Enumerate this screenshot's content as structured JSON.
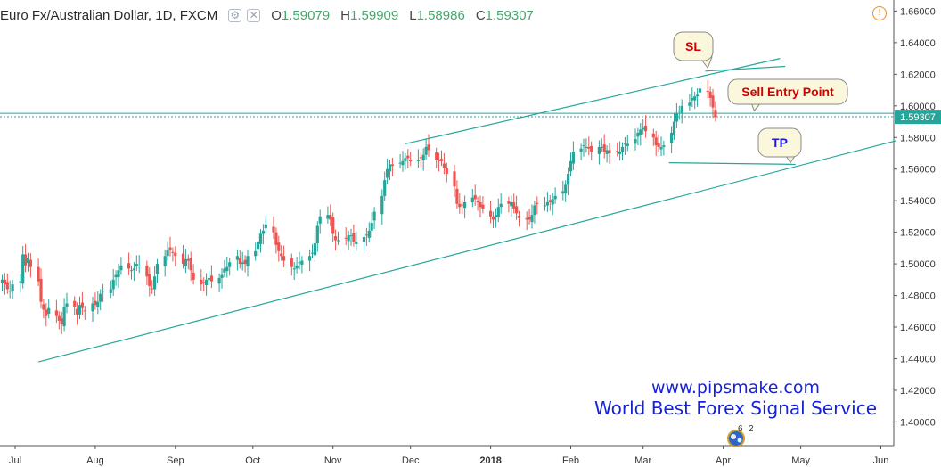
{
  "header": {
    "title": "Euro Fx/Australian Dollar, 1D, FXCM",
    "open_label": "O",
    "open": "1.59079",
    "high_label": "H",
    "high": "1.59909",
    "low_label": "L",
    "low": "1.58986",
    "close_label": "C",
    "close": "1.59307"
  },
  "info_icon": "!",
  "watermark": {
    "url": "www.pipsmake.com",
    "tagline": "World Best Forex Signal Service"
  },
  "badge": {
    "count_left": "6",
    "count_right": "2"
  },
  "colors": {
    "up": "#26a69a",
    "down": "#ef5350",
    "line": "#26a69a",
    "price_label_bg": "#26a69a",
    "callout_bg": "#fbf7dc",
    "sl_text": "#d40000",
    "sell_text": "#d40000",
    "tp_text": "#1a1ad8"
  },
  "chart_data": {
    "type": "candlestick",
    "title": "Euro Fx/Australian Dollar, 1D, FXCM",
    "y_ticks": [
      "1.40000",
      "1.42000",
      "1.44000",
      "1.46000",
      "1.48000",
      "1.50000",
      "1.52000",
      "1.54000",
      "1.56000",
      "1.58000",
      "1.60000",
      "1.62000",
      "1.64000",
      "1.66000"
    ],
    "ylim": [
      1.385,
      1.667
    ],
    "x_ticks": [
      "Jul",
      "Aug",
      "Sep",
      "Oct",
      "Nov",
      "Dec",
      "2018",
      "Feb",
      "Mar",
      "Apr",
      "May",
      "Jun"
    ],
    "x_ticks_bold": [
      "2018"
    ],
    "last_price": "1.59307",
    "horizontal_levels": [
      1.5953,
      1.5931
    ],
    "trendlines": [
      {
        "from": [
          "2017-07-10",
          1.438
        ],
        "to": [
          "2018-06-07",
          1.578
        ]
      },
      {
        "from": [
          "2017-11-29",
          1.576
        ],
        "to": [
          "2018-04-23",
          1.63
        ]
      },
      {
        "from": [
          "2018-03-25",
          1.622
        ],
        "to": [
          "2018-04-25",
          1.625
        ]
      },
      {
        "from": [
          "2018-03-11",
          1.564
        ],
        "to": [
          "2018-04-29",
          1.563
        ]
      }
    ],
    "annotations": [
      {
        "text": "SL",
        "anchor": [
          "2018-03-26",
          1.624
        ]
      },
      {
        "text": "Sell Entry Point",
        "anchor": [
          "2018-04-13",
          1.597
        ]
      },
      {
        "text": "TP",
        "anchor": [
          "2018-04-27",
          1.564
        ]
      }
    ],
    "candles": {
      "start": "2017-06-26",
      "close": [
        1.49,
        1.487,
        1.484,
        1.483,
        1.487,
        1.489,
        1.506,
        1.499,
        1.504,
        1.498,
        1.489,
        1.476,
        1.471,
        1.467,
        1.472,
        1.467,
        1.464,
        1.462,
        1.473,
        1.475,
        1.473,
        1.468,
        1.474,
        1.472,
        1.47,
        1.475,
        1.474,
        1.476,
        1.481,
        1.483,
        1.484,
        1.49,
        1.493,
        1.496,
        1.499,
        1.497,
        1.496,
        1.497,
        1.5,
        1.499,
        1.492,
        1.486,
        1.484,
        1.492,
        1.5,
        1.505,
        1.509,
        1.509,
        1.507,
        1.505,
        1.5,
        1.503,
        1.502,
        1.496,
        1.49,
        1.487,
        1.488,
        1.49,
        1.491,
        1.489,
        1.491,
        1.493,
        1.497,
        1.498,
        1.501,
        1.505,
        1.5,
        1.501,
        1.5,
        1.505,
        1.508,
        1.514,
        1.519,
        1.521,
        1.525,
        1.52,
        1.512,
        1.508,
        1.505,
        1.502,
        1.498,
        1.497,
        1.499,
        1.501,
        1.502,
        1.505,
        1.507,
        1.513,
        1.524,
        1.53,
        1.531,
        1.528,
        1.519,
        1.515,
        1.515,
        1.516,
        1.518,
        1.518,
        1.514,
        1.514,
        1.517,
        1.518,
        1.521,
        1.526,
        1.533,
        1.543,
        1.553,
        1.56,
        1.563,
        1.562,
        1.564,
        1.565,
        1.567,
        1.567,
        1.565,
        1.566,
        1.567,
        1.569,
        1.574,
        1.572,
        1.566,
        1.565,
        1.565,
        1.561,
        1.557,
        1.549,
        1.538,
        1.536,
        1.537,
        1.539,
        1.542,
        1.541,
        1.539,
        1.536,
        1.535,
        1.53,
        1.528,
        1.531,
        1.536,
        1.538,
        1.538,
        1.539,
        1.535,
        1.532,
        1.529,
        1.528,
        1.528,
        1.531,
        1.537,
        1.538,
        1.537,
        1.539,
        1.539,
        1.541,
        1.543,
        1.546,
        1.55,
        1.557,
        1.565,
        1.571,
        1.573,
        1.575,
        1.574,
        1.573,
        1.571,
        1.574,
        1.574,
        1.571,
        1.572,
        1.57,
        1.571,
        1.571,
        1.574,
        1.576,
        1.576,
        1.579,
        1.583,
        1.585,
        1.586,
        1.584,
        1.58,
        1.575,
        1.574,
        1.574,
        1.575,
        1.583,
        1.59,
        1.595,
        1.597,
        1.6,
        1.602,
        1.605,
        1.606,
        1.607,
        1.611,
        1.609,
        1.605,
        1.599,
        1.593
      ]
    }
  }
}
